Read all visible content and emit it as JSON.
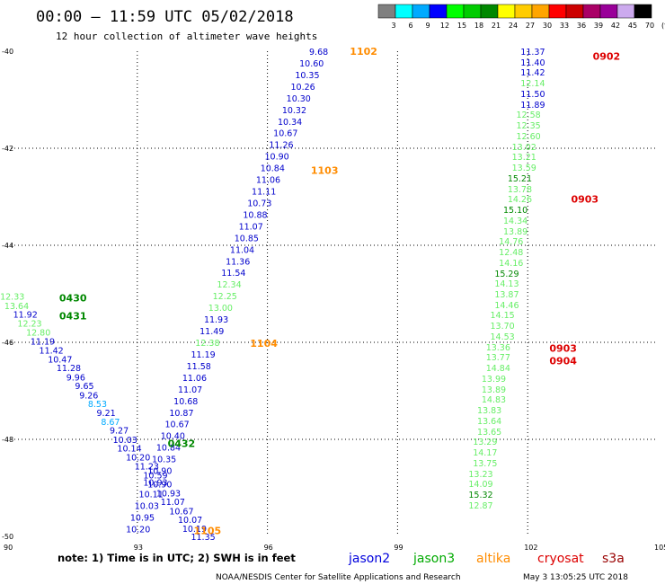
{
  "header": {
    "title": "00:00 – 11:59 UTC 05/02/2018",
    "subtitle": "12 hour collection of altimeter wave heights"
  },
  "legend": {
    "labels": [
      "3",
      "6",
      "9",
      "12",
      "15",
      "18",
      "21",
      "24",
      "27",
      "30",
      "33",
      "36",
      "39",
      "42",
      "45",
      "70",
      "(ft)"
    ],
    "colors": [
      "#808080",
      "#00ffff",
      "#00aaff",
      "#0000ff",
      "#00ff00",
      "#00cc00",
      "#008800",
      "#ffff00",
      "#ffcc00",
      "#ffa500",
      "#ff0000",
      "#cc0000",
      "#aa0066",
      "#990099",
      "#ccaaee",
      "#000000"
    ]
  },
  "footer": {
    "note": "note:  1) Time is in UTC; 2) SWH is in feet",
    "satellites": [
      {
        "name": "jason2",
        "color": "#0000dd"
      },
      {
        "name": "jason3",
        "color": "#00aa00"
      },
      {
        "name": "altika",
        "color": "#ff8c00"
      },
      {
        "name": "cryosat",
        "color": "#dd0000"
      },
      {
        "name": "s3a",
        "color": "#990000"
      }
    ],
    "credit": "NOAA/NESDIS Center for Satellite Applications and Research",
    "timestamp": "May  3 13:05:25 UTC 2018"
  },
  "chart_data": {
    "type": "scatter",
    "xlim": [
      90,
      105
    ],
    "ylim": [
      -50,
      -40
    ],
    "xticks": [
      90,
      93,
      96,
      99,
      102,
      105
    ],
    "xtick_labels": [
      "90",
      "93",
      "96",
      "99",
      "102",
      "105"
    ],
    "yticks": [
      -40,
      -42,
      -44,
      -46,
      -48,
      -50
    ],
    "ytick_labels": [
      "-40",
      "-42",
      "-44",
      "-46",
      "-48",
      "-50"
    ],
    "grid": true,
    "tracks": [
      {
        "name": "left-track",
        "points": [
          {
            "x": 90.4,
            "y": -45.05,
            "v": "12.33",
            "c": "#66ee66"
          },
          {
            "x": 90.5,
            "y": -45.24,
            "v": "13.64",
            "c": "#66ee66"
          },
          {
            "x": 90.7,
            "y": -45.42,
            "v": "11.92",
            "c": "#0000cc"
          },
          {
            "x": 90.8,
            "y": -45.6,
            "v": "12.23",
            "c": "#66ee66"
          },
          {
            "x": 91.0,
            "y": -45.79,
            "v": "12.80",
            "c": "#66ee66"
          },
          {
            "x": 91.1,
            "y": -45.97,
            "v": "11.19",
            "c": "#0000cc"
          },
          {
            "x": 91.3,
            "y": -46.16,
            "v": "11.42",
            "c": "#0000cc"
          },
          {
            "x": 91.5,
            "y": -46.34,
            "v": "10.47",
            "c": "#0000cc"
          },
          {
            "x": 91.7,
            "y": -46.52,
            "v": "11.28",
            "c": "#0000cc"
          },
          {
            "x": 91.8,
            "y": -46.71,
            "v": "9.96",
            "c": "#0000cc"
          },
          {
            "x": 92.0,
            "y": -46.89,
            "v": "9.65",
            "c": "#0000cc"
          },
          {
            "x": 92.1,
            "y": -47.08,
            "v": "9.26",
            "c": "#0000cc"
          },
          {
            "x": 92.3,
            "y": -47.26,
            "v": "8.53",
            "c": "#00aaff"
          },
          {
            "x": 92.5,
            "y": -47.44,
            "v": "9.21",
            "c": "#0000cc"
          },
          {
            "x": 92.6,
            "y": -47.63,
            "v": "8.67",
            "c": "#00aaff"
          },
          {
            "x": 92.8,
            "y": -47.81,
            "v": "9.27",
            "c": "#0000cc"
          },
          {
            "x": 93.0,
            "y": -48.0,
            "v": "10.03",
            "c": "#0000cc"
          },
          {
            "x": 93.1,
            "y": -48.18,
            "v": "10.14",
            "c": "#0000cc"
          },
          {
            "x": 93.3,
            "y": -48.36,
            "v": "10.20",
            "c": "#0000cc"
          },
          {
            "x": 93.5,
            "y": -48.55,
            "v": "11.23",
            "c": "#0000cc"
          },
          {
            "x": 93.7,
            "y": -48.73,
            "v": "10.59",
            "c": "#0000cc"
          },
          {
            "x": 93.8,
            "y": -48.92,
            "v": "10.90",
            "c": "#0000cc"
          },
          {
            "x": 94.0,
            "y": -49.1,
            "v": "10.93",
            "c": "#0000cc"
          },
          {
            "x": 94.1,
            "y": -49.28,
            "v": "11.07",
            "c": "#0000cc"
          },
          {
            "x": 94.3,
            "y": -49.47,
            "v": "10.67",
            "c": "#0000cc"
          },
          {
            "x": 94.5,
            "y": -49.65,
            "v": "10.07",
            "c": "#0000cc"
          },
          {
            "x": 94.6,
            "y": -49.83,
            "v": "10.19",
            "c": "#0000cc"
          },
          {
            "x": 94.8,
            "y": -50.0,
            "v": "11.35",
            "c": "#0000cc"
          }
        ]
      },
      {
        "name": "middle-track",
        "points": [
          {
            "x": 97.4,
            "y": -40.0,
            "v": "9.68",
            "c": "#0000cc"
          },
          {
            "x": 97.3,
            "y": -40.24,
            "v": "10.60",
            "c": "#0000cc"
          },
          {
            "x": 97.2,
            "y": -40.48,
            "v": "10.35",
            "c": "#0000cc"
          },
          {
            "x": 97.1,
            "y": -40.72,
            "v": "10.26",
            "c": "#0000cc"
          },
          {
            "x": 97.0,
            "y": -40.96,
            "v": "10.30",
            "c": "#0000cc"
          },
          {
            "x": 96.9,
            "y": -41.2,
            "v": "10.32",
            "c": "#0000cc"
          },
          {
            "x": 96.8,
            "y": -41.44,
            "v": "10.34",
            "c": "#0000cc"
          },
          {
            "x": 96.7,
            "y": -41.68,
            "v": "10.67",
            "c": "#0000cc"
          },
          {
            "x": 96.6,
            "y": -41.92,
            "v": "11.26",
            "c": "#0000cc"
          },
          {
            "x": 96.5,
            "y": -42.16,
            "v": "10.90",
            "c": "#0000cc"
          },
          {
            "x": 96.4,
            "y": -42.4,
            "v": "10.84",
            "c": "#0000cc"
          },
          {
            "x": 96.3,
            "y": -42.64,
            "v": "11.06",
            "c": "#0000cc"
          },
          {
            "x": 96.2,
            "y": -42.88,
            "v": "11.11",
            "c": "#0000cc"
          },
          {
            "x": 96.1,
            "y": -43.12,
            "v": "10.73",
            "c": "#0000cc"
          },
          {
            "x": 96.0,
            "y": -43.36,
            "v": "10.88",
            "c": "#0000cc"
          },
          {
            "x": 95.9,
            "y": -43.6,
            "v": "11.07",
            "c": "#0000cc"
          },
          {
            "x": 95.8,
            "y": -43.84,
            "v": "10.85",
            "c": "#0000cc"
          },
          {
            "x": 95.7,
            "y": -44.08,
            "v": "11.04",
            "c": "#0000cc"
          },
          {
            "x": 95.6,
            "y": -44.32,
            "v": "11.36",
            "c": "#0000cc"
          },
          {
            "x": 95.5,
            "y": -44.56,
            "v": "11.54",
            "c": "#0000cc"
          },
          {
            "x": 95.4,
            "y": -44.8,
            "v": "12.34",
            "c": "#66ee66"
          },
          {
            "x": 95.3,
            "y": -45.04,
            "v": "12.25",
            "c": "#66ee66"
          },
          {
            "x": 95.2,
            "y": -45.28,
            "v": "13.00",
            "c": "#66ee66"
          },
          {
            "x": 95.1,
            "y": -45.52,
            "v": "11.93",
            "c": "#0000cc"
          },
          {
            "x": 95.0,
            "y": -45.76,
            "v": "11.49",
            "c": "#0000cc"
          },
          {
            "x": 94.9,
            "y": -46.0,
            "v": "12.38",
            "c": "#66ee66"
          },
          {
            "x": 94.8,
            "y": -46.24,
            "v": "11.19",
            "c": "#0000cc"
          },
          {
            "x": 94.7,
            "y": -46.48,
            "v": "11.58",
            "c": "#0000cc"
          },
          {
            "x": 94.6,
            "y": -46.72,
            "v": "11.06",
            "c": "#0000cc"
          },
          {
            "x": 94.5,
            "y": -46.96,
            "v": "11.07",
            "c": "#0000cc"
          },
          {
            "x": 94.4,
            "y": -47.2,
            "v": "10.68",
            "c": "#0000cc"
          },
          {
            "x": 94.3,
            "y": -47.44,
            "v": "10.87",
            "c": "#0000cc"
          },
          {
            "x": 94.2,
            "y": -47.68,
            "v": "10.67",
            "c": "#0000cc"
          },
          {
            "x": 94.1,
            "y": -47.92,
            "v": "10.40",
            "c": "#0000cc"
          },
          {
            "x": 94.0,
            "y": -48.16,
            "v": "10.84",
            "c": "#0000cc"
          },
          {
            "x": 93.9,
            "y": -48.4,
            "v": "10.35",
            "c": "#0000cc"
          },
          {
            "x": 93.8,
            "y": -48.64,
            "v": "10.90",
            "c": "#0000cc"
          },
          {
            "x": 93.7,
            "y": -48.88,
            "v": "10.93",
            "c": "#0000cc"
          },
          {
            "x": 93.6,
            "y": -49.12,
            "v": "10.11",
            "c": "#0000cc"
          },
          {
            "x": 93.5,
            "y": -49.36,
            "v": "10.03",
            "c": "#0000cc"
          },
          {
            "x": 93.4,
            "y": -49.6,
            "v": "10.95",
            "c": "#0000cc"
          },
          {
            "x": 93.3,
            "y": -49.84,
            "v": "10.20",
            "c": "#0000cc"
          }
        ]
      },
      {
        "name": "right-track",
        "points": [
          {
            "x": 102.4,
            "y": -40.0,
            "v": "11.37",
            "c": "#0000cc"
          },
          {
            "x": 102.4,
            "y": -40.22,
            "v": "11.40",
            "c": "#0000cc"
          },
          {
            "x": 102.4,
            "y": -40.43,
            "v": "11.42",
            "c": "#0000cc"
          },
          {
            "x": 102.4,
            "y": -40.65,
            "v": "12.14",
            "c": "#66ee66"
          },
          {
            "x": 102.4,
            "y": -40.87,
            "v": "11.50",
            "c": "#0000cc"
          },
          {
            "x": 102.4,
            "y": -41.09,
            "v": "11.89",
            "c": "#0000cc"
          },
          {
            "x": 102.3,
            "y": -41.3,
            "v": "12.58",
            "c": "#66ee66"
          },
          {
            "x": 102.3,
            "y": -41.52,
            "v": "12.35",
            "c": "#66ee66"
          },
          {
            "x": 102.3,
            "y": -41.74,
            "v": "12.60",
            "c": "#66ee66"
          },
          {
            "x": 102.2,
            "y": -41.96,
            "v": "13.02",
            "c": "#66ee66"
          },
          {
            "x": 102.2,
            "y": -42.17,
            "v": "13.21",
            "c": "#66ee66"
          },
          {
            "x": 102.2,
            "y": -42.39,
            "v": "13.59",
            "c": "#66ee66"
          },
          {
            "x": 102.1,
            "y": -42.61,
            "v": "15.21",
            "c": "#008800"
          },
          {
            "x": 102.1,
            "y": -42.83,
            "v": "13.78",
            "c": "#66ee66"
          },
          {
            "x": 102.1,
            "y": -43.04,
            "v": "14.26",
            "c": "#66ee66"
          },
          {
            "x": 102.0,
            "y": -43.26,
            "v": "15.10",
            "c": "#008800"
          },
          {
            "x": 102.0,
            "y": -43.48,
            "v": "14.34",
            "c": "#66ee66"
          },
          {
            "x": 102.0,
            "y": -43.7,
            "v": "13.89",
            "c": "#66ee66"
          },
          {
            "x": 101.9,
            "y": -43.91,
            "v": "14.76",
            "c": "#66ee66"
          },
          {
            "x": 101.9,
            "y": -44.13,
            "v": "12.48",
            "c": "#66ee66"
          },
          {
            "x": 101.9,
            "y": -44.35,
            "v": "14.16",
            "c": "#66ee66"
          },
          {
            "x": 101.8,
            "y": -44.57,
            "v": "15.29",
            "c": "#008800"
          },
          {
            "x": 101.8,
            "y": -44.78,
            "v": "14.13",
            "c": "#66ee66"
          },
          {
            "x": 101.8,
            "y": -45.0,
            "v": "13.87",
            "c": "#66ee66"
          },
          {
            "x": 101.8,
            "y": -45.22,
            "v": "14.46",
            "c": "#66ee66"
          },
          {
            "x": 101.7,
            "y": -45.43,
            "v": "14.15",
            "c": "#66ee66"
          },
          {
            "x": 101.7,
            "y": -45.65,
            "v": "13.70",
            "c": "#66ee66"
          },
          {
            "x": 101.7,
            "y": -45.87,
            "v": "14.53",
            "c": "#66ee66"
          },
          {
            "x": 101.6,
            "y": -46.09,
            "v": "13.36",
            "c": "#66ee66"
          },
          {
            "x": 101.6,
            "y": -46.3,
            "v": "13.77",
            "c": "#66ee66"
          },
          {
            "x": 101.6,
            "y": -46.52,
            "v": "14.84",
            "c": "#66ee66"
          },
          {
            "x": 101.5,
            "y": -46.74,
            "v": "13.99",
            "c": "#66ee66"
          },
          {
            "x": 101.5,
            "y": -46.96,
            "v": "13.89",
            "c": "#66ee66"
          },
          {
            "x": 101.5,
            "y": -47.17,
            "v": "14.83",
            "c": "#66ee66"
          },
          {
            "x": 101.4,
            "y": -47.39,
            "v": "13.83",
            "c": "#66ee66"
          },
          {
            "x": 101.4,
            "y": -47.61,
            "v": "13.64",
            "c": "#66ee66"
          },
          {
            "x": 101.4,
            "y": -47.83,
            "v": "13.65",
            "c": "#66ee66"
          },
          {
            "x": 101.3,
            "y": -48.04,
            "v": "13.29",
            "c": "#66ee66"
          },
          {
            "x": 101.3,
            "y": -48.26,
            "v": "14.17",
            "c": "#66ee66"
          },
          {
            "x": 101.3,
            "y": -48.48,
            "v": "13.75",
            "c": "#66ee66"
          },
          {
            "x": 101.2,
            "y": -48.7,
            "v": "13.23",
            "c": "#66ee66"
          },
          {
            "x": 101.2,
            "y": -48.91,
            "v": "14.09",
            "c": "#66ee66"
          },
          {
            "x": 101.2,
            "y": -49.13,
            "v": "15.32",
            "c": "#008800"
          },
          {
            "x": 101.2,
            "y": -49.35,
            "v": "12.87",
            "c": "#66ee66"
          }
        ]
      }
    ],
    "time_labels": [
      {
        "x": 97.9,
        "y": -40.0,
        "t": "1102",
        "c": "#ff8c00"
      },
      {
        "x": 97.0,
        "y": -42.45,
        "t": "1103",
        "c": "#ff8c00"
      },
      {
        "x": 95.6,
        "y": -46.02,
        "t": "1104",
        "c": "#ff8c00"
      },
      {
        "x": 94.3,
        "y": -49.88,
        "t": "1105",
        "c": "#ff8c00"
      },
      {
        "x": 91.2,
        "y": -45.08,
        "t": "0430",
        "c": "#008800"
      },
      {
        "x": 91.2,
        "y": -45.45,
        "t": "0431",
        "c": "#008800"
      },
      {
        "x": 93.7,
        "y": -48.08,
        "t": "0432",
        "c": "#008800"
      },
      {
        "x": 103.5,
        "y": -40.1,
        "t": "0902",
        "c": "#dd0000"
      },
      {
        "x": 103.0,
        "y": -43.05,
        "t": "0903",
        "c": "#dd0000"
      },
      {
        "x": 102.5,
        "y": -46.12,
        "t": "0903",
        "c": "#dd0000"
      },
      {
        "x": 102.5,
        "y": -46.38,
        "t": "0904",
        "c": "#dd0000"
      }
    ]
  }
}
